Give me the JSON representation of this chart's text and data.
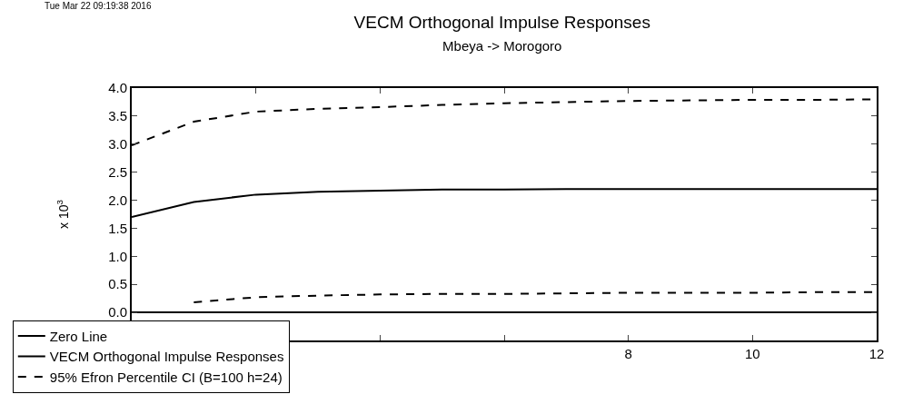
{
  "chart_data": {
    "type": "line",
    "title": "VECM Orthogonal Impulse Responses",
    "subtitle": "Mbeya -> Morogoro",
    "ylabel": "x 10$^{3}$",
    "annotations": [
      "Tue Mar 22 09:19:38 2016"
    ],
    "x": [
      0,
      1,
      2,
      3,
      4,
      5,
      6,
      7,
      8,
      9,
      10,
      11,
      12
    ],
    "series": [
      {
        "name": "Zero Line",
        "color": "#000000",
        "line_style": "solid",
        "values": [
          0,
          0,
          0,
          0,
          0,
          0,
          0,
          0,
          0,
          0,
          0,
          0,
          0
        ]
      },
      {
        "name": "VECM Orthogonal Impulse Responses",
        "color": "#000000",
        "line_style": "solid",
        "values": [
          1.7,
          1.97,
          2.1,
          2.15,
          2.17,
          2.19,
          2.19,
          2.2,
          2.2,
          2.2,
          2.2,
          2.2,
          2.2
        ]
      },
      {
        "name": "95% Efron Percentile CI (B=100 h=24)",
        "color": "#000000",
        "line_style": "dashed",
        "values": [
          2.98,
          3.4,
          3.58,
          3.63,
          3.66,
          3.7,
          3.73,
          3.75,
          3.77,
          3.78,
          3.79,
          3.79,
          3.8
        ]
      },
      {
        "color": "#000000",
        "line_style": "dashed",
        "values": [
          null,
          0.18,
          0.27,
          0.3,
          0.32,
          0.33,
          0.33,
          0.34,
          0.35,
          0.35,
          0.35,
          0.36,
          0.36
        ]
      }
    ],
    "xlim": [
      0,
      12
    ],
    "xticks": [
      {
        "value": 0,
        "label": null
      },
      {
        "value": 2,
        "label": null
      },
      {
        "value": 4,
        "label": null
      },
      {
        "value": 6,
        "label": null
      },
      8,
      10,
      12
    ],
    "ylim": [
      -0.5,
      4.0
    ],
    "yticks": [
      {
        "value": 0,
        "label": "0.0"
      },
      {
        "value": 0.5,
        "label": "0.5"
      },
      {
        "value": 1,
        "label": "1.0"
      },
      {
        "value": 1.5,
        "label": "1.5"
      },
      {
        "value": 2,
        "label": "2.0"
      },
      {
        "value": 2.5,
        "label": "2.5"
      },
      {
        "value": 3,
        "label": "3.0"
      },
      {
        "value": 3.5,
        "label": "3.5"
      },
      {
        "value": 4,
        "label": "4.0"
      }
    ],
    "grid": false,
    "legend": "bottom left",
    "marker": "none"
  }
}
